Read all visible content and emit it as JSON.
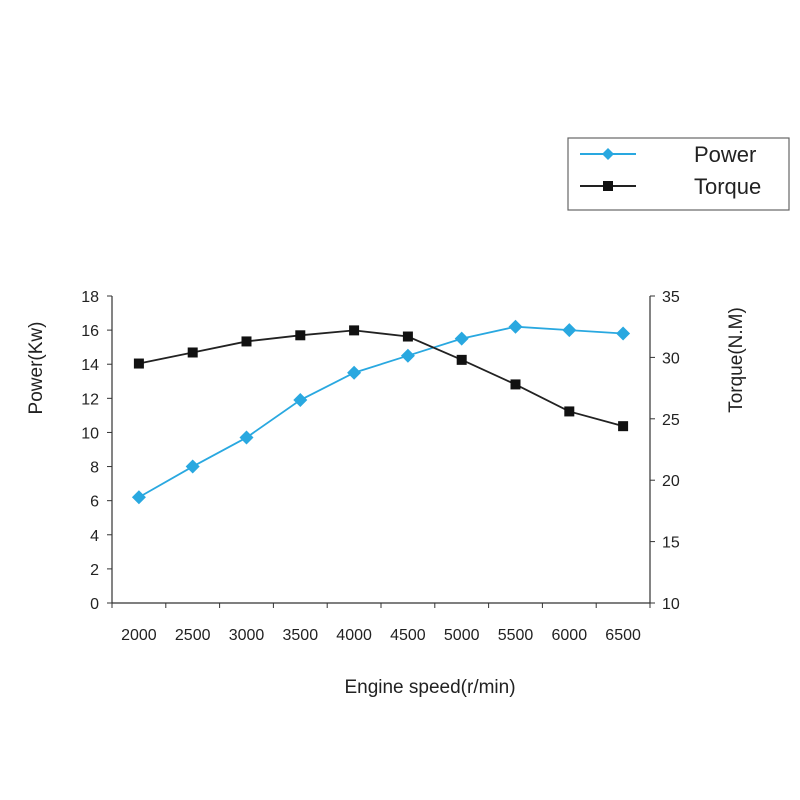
{
  "chart_data": {
    "type": "line",
    "title": "",
    "xlabel": "Engine speed(r/min)",
    "ylabel_left": "Power(Kw)",
    "ylabel_right": "Torque(N.M)",
    "x": [
      2000,
      2500,
      3000,
      3500,
      4000,
      4500,
      5000,
      5500,
      6000,
      6500
    ],
    "y_left_lim": [
      0,
      18
    ],
    "y_left_ticks": [
      0,
      2,
      4,
      6,
      8,
      10,
      12,
      14,
      16,
      18
    ],
    "y_right_lim": [
      10,
      35
    ],
    "y_right_ticks": [
      10,
      15,
      20,
      25,
      30,
      35
    ],
    "legend_position": "top-right",
    "series": [
      {
        "name": "Power",
        "axis": "left",
        "marker": "diamond",
        "color": "#29a8e0",
        "values": [
          6.2,
          8.0,
          9.7,
          11.9,
          13.5,
          14.5,
          15.5,
          16.2,
          16.0,
          15.8
        ]
      },
      {
        "name": "Torque",
        "axis": "right",
        "marker": "square",
        "color": "#222222",
        "values": [
          29.5,
          30.4,
          31.3,
          31.8,
          32.2,
          31.7,
          29.8,
          27.8,
          25.6,
          24.4
        ]
      }
    ]
  }
}
